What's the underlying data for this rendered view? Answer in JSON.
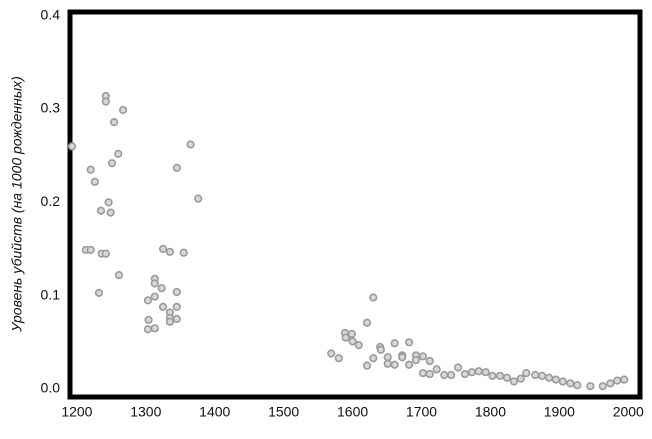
{
  "chart_data": {
    "type": "scatter",
    "ylabel": "Уровень убийств (на 1000 рожденных)",
    "x": [
      1193,
      1213,
      1220,
      1220,
      1226,
      1232,
      1235,
      1236,
      1242,
      1242,
      1242,
      1246,
      1249,
      1251,
      1254,
      1260,
      1261,
      1267,
      1303,
      1304,
      1303,
      1313,
      1313,
      1313,
      1313,
      1323,
      1325,
      1325,
      1335,
      1335,
      1335,
      1335,
      1345,
      1345,
      1345,
      1345,
      1355,
      1365,
      1376,
      1569,
      1580,
      1589,
      1590,
      1599,
      1600,
      1609,
      1621,
      1621,
      1630,
      1630,
      1640,
      1641,
      1651,
      1651,
      1661,
      1661,
      1672,
      1672,
      1682,
      1682,
      1692,
      1692,
      1702,
      1702,
      1712,
      1712,
      1722,
      1733,
      1743,
      1753,
      1763,
      1773,
      1783,
      1793,
      1803,
      1814,
      1824,
      1834,
      1844,
      1852,
      1865,
      1875,
      1885,
      1895,
      1905,
      1916,
      1926,
      1945,
      1963,
      1974,
      1984,
      1994
    ],
    "values": [
      0.26,
      0.149,
      0.149,
      0.235,
      0.222,
      0.103,
      0.191,
      0.145,
      0.145,
      0.314,
      0.308,
      0.2,
      0.189,
      0.242,
      0.286,
      0.252,
      0.122,
      0.299,
      0.095,
      0.074,
      0.064,
      0.118,
      0.113,
      0.099,
      0.065,
      0.108,
      0.088,
      0.15,
      0.147,
      0.082,
      0.076,
      0.072,
      0.237,
      0.104,
      0.088,
      0.075,
      0.146,
      0.262,
      0.204,
      0.038,
      0.033,
      0.06,
      0.055,
      0.059,
      0.051,
      0.047,
      0.071,
      0.025,
      0.098,
      0.033,
      0.045,
      0.042,
      0.034,
      0.027,
      0.049,
      0.026,
      0.036,
      0.034,
      0.05,
      0.026,
      0.036,
      0.031,
      0.035,
      0.017,
      0.016,
      0.03,
      0.021,
      0.015,
      0.015,
      0.023,
      0.016,
      0.018,
      0.019,
      0.018,
      0.014,
      0.014,
      0.012,
      0.008,
      0.011,
      0.017,
      0.015,
      0.014,
      0.012,
      0.01,
      0.008,
      0.006,
      0.004,
      0.003,
      0.003,
      0.006,
      0.009,
      0.01
    ],
    "color": "#9a9a9a",
    "xlim": [
      1190,
      2017
    ],
    "ylim": [
      -0.0086,
      0.404
    ],
    "xticks": [
      1200,
      1300,
      1400,
      1500,
      1600,
      1700,
      1800,
      1900,
      2000
    ],
    "yticks": [
      {
        "value": 0,
        "label": "0.0"
      },
      0.1,
      0.2,
      0.3,
      0.4
    ]
  }
}
